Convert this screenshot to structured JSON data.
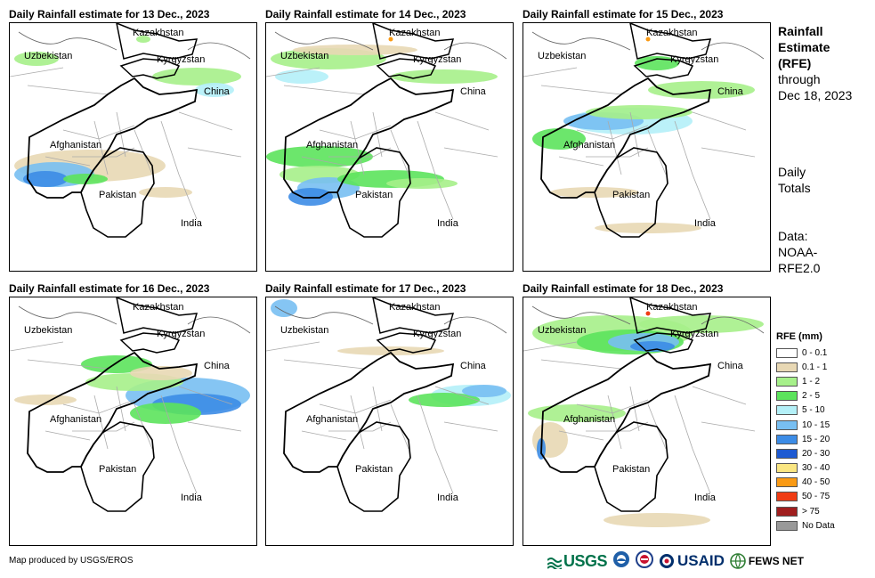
{
  "panels": [
    {
      "title": "Daily Rainfall estimate for 13 Dec., 2023"
    },
    {
      "title": "Daily Rainfall estimate for 14 Dec., 2023"
    },
    {
      "title": "Daily Rainfall estimate for 15 Dec., 2023"
    },
    {
      "title": "Daily Rainfall estimate for 16 Dec., 2023"
    },
    {
      "title": "Daily Rainfall estimate for 17 Dec., 2023"
    },
    {
      "title": "Daily Rainfall estimate for 18 Dec., 2023"
    }
  ],
  "map_labels": {
    "kazakhstan": "Kazakhstan",
    "uzbekistan": "Uzbekistan",
    "kyrgyzstan": "Kyrgyzstan",
    "china": "China",
    "afghanistan": "Afghanistan",
    "pakistan": "Pakistan",
    "india": "India"
  },
  "side": {
    "title_lines": [
      "Rainfall",
      "Estimate",
      "(RFE)"
    ],
    "through": "through",
    "date": "Dec 18, 2023",
    "daily": "Daily",
    "totals": "Totals",
    "data_label": "Data:",
    "source1": "NOAA-",
    "source2": "RFE2.0"
  },
  "legend": {
    "title": "RFE (mm)",
    "items": [
      {
        "label": "0 - 0.1",
        "color": "#ffffff"
      },
      {
        "label": "0.1 - 1",
        "color": "#e8d8b4"
      },
      {
        "label": "1 - 2",
        "color": "#a6f08a"
      },
      {
        "label": "2 - 5",
        "color": "#5ce35c"
      },
      {
        "label": "5 - 10",
        "color": "#b4f0f8"
      },
      {
        "label": "10 - 15",
        "color": "#78bff2"
      },
      {
        "label": "15 - 20",
        "color": "#3c8ce6"
      },
      {
        "label": "20 - 30",
        "color": "#1e5ad2"
      },
      {
        "label": "30 - 40",
        "color": "#fae682"
      },
      {
        "label": "40 - 50",
        "color": "#fa9a14"
      },
      {
        "label": "50 - 75",
        "color": "#f03c14"
      },
      {
        "label": "> 75",
        "color": "#a01e1e"
      },
      {
        "label": "No Data",
        "color": "#999999"
      }
    ]
  },
  "credit": "Map produced by USGS/EROS",
  "logos": {
    "usgs": "USGS",
    "usaid": "USAID",
    "fewsnet": "FEWS NET"
  }
}
